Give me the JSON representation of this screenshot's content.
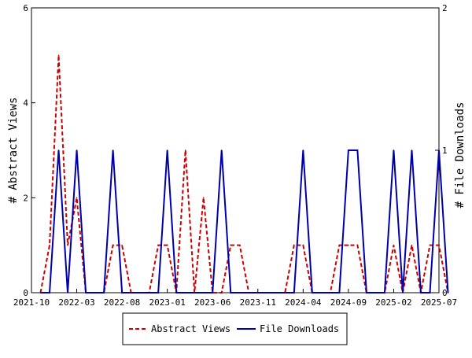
{
  "chart_data": {
    "type": "line",
    "x_axis": {
      "tick_labels": [
        "2021-10",
        "2022-03",
        "2022-08",
        "2023-01",
        "2023-06",
        "2023-11",
        "2024-04",
        "2024-09",
        "2025-02",
        "2025-07"
      ],
      "range": [
        "2021-10",
        "2025-07"
      ]
    },
    "y_left": {
      "label": "# Abstract Views",
      "range": [
        0,
        6
      ],
      "tick_labels": [
        "0",
        "2",
        "4",
        "6"
      ]
    },
    "y_right": {
      "label": "# File Downloads",
      "range": [
        0,
        2
      ],
      "tick_labels": [
        "0",
        "1",
        "2"
      ]
    },
    "grid": false,
    "legend_position": "bottom-center",
    "series": [
      {
        "name": "Abstract Views",
        "axis": "left",
        "color": "#cc0000",
        "style": "dashed",
        "points": [
          [
            "2021-11",
            0
          ],
          [
            "2021-12",
            1
          ],
          [
            "2022-01",
            5
          ],
          [
            "2022-02",
            1
          ],
          [
            "2022-03",
            2
          ],
          [
            "2022-04",
            0
          ],
          [
            "2022-05",
            0
          ],
          [
            "2022-06",
            0
          ],
          [
            "2022-07",
            1
          ],
          [
            "2022-08",
            1
          ],
          [
            "2022-09",
            0
          ],
          [
            "2022-10",
            0
          ],
          [
            "2022-11",
            0
          ],
          [
            "2022-12",
            1
          ],
          [
            "2023-01",
            1
          ],
          [
            "2023-02",
            0
          ],
          [
            "2023-03",
            3
          ],
          [
            "2023-04",
            0
          ],
          [
            "2023-05",
            2
          ],
          [
            "2023-06",
            0
          ],
          [
            "2023-07",
            0
          ],
          [
            "2023-08",
            1
          ],
          [
            "2023-09",
            1
          ],
          [
            "2023-10",
            0
          ],
          [
            "2023-11",
            0
          ],
          [
            "2023-12",
            0
          ],
          [
            "2024-01",
            0
          ],
          [
            "2024-02",
            0
          ],
          [
            "2024-03",
            1
          ],
          [
            "2024-04",
            1
          ],
          [
            "2024-05",
            0
          ],
          [
            "2024-06",
            0
          ],
          [
            "2024-07",
            0
          ],
          [
            "2024-08",
            1
          ],
          [
            "2024-09",
            1
          ],
          [
            "2024-10",
            1
          ],
          [
            "2024-11",
            0
          ],
          [
            "2024-12",
            0
          ],
          [
            "2025-01",
            0
          ],
          [
            "2025-02",
            1
          ],
          [
            "2025-03",
            0
          ],
          [
            "2025-04",
            1
          ],
          [
            "2025-05",
            0
          ],
          [
            "2025-06",
            1
          ],
          [
            "2025-07",
            1
          ],
          [
            "2025-08",
            0
          ]
        ]
      },
      {
        "name": "File Downloads",
        "axis": "right",
        "color": "#0000aa",
        "style": "solid",
        "points": [
          [
            "2021-11",
            0
          ],
          [
            "2021-12",
            0
          ],
          [
            "2022-01",
            1
          ],
          [
            "2022-02",
            0
          ],
          [
            "2022-03",
            1
          ],
          [
            "2022-04",
            0
          ],
          [
            "2022-05",
            0
          ],
          [
            "2022-06",
            0
          ],
          [
            "2022-07",
            1
          ],
          [
            "2022-08",
            0
          ],
          [
            "2022-09",
            0
          ],
          [
            "2022-10",
            0
          ],
          [
            "2022-11",
            0
          ],
          [
            "2022-12",
            0
          ],
          [
            "2023-01",
            1
          ],
          [
            "2023-02",
            0
          ],
          [
            "2023-03",
            0
          ],
          [
            "2023-04",
            0
          ],
          [
            "2023-05",
            0
          ],
          [
            "2023-06",
            0
          ],
          [
            "2023-07",
            1
          ],
          [
            "2023-08",
            0
          ],
          [
            "2023-09",
            0
          ],
          [
            "2023-10",
            0
          ],
          [
            "2023-11",
            0
          ],
          [
            "2023-12",
            0
          ],
          [
            "2024-01",
            0
          ],
          [
            "2024-02",
            0
          ],
          [
            "2024-03",
            0
          ],
          [
            "2024-04",
            1
          ],
          [
            "2024-05",
            0
          ],
          [
            "2024-06",
            0
          ],
          [
            "2024-07",
            0
          ],
          [
            "2024-08",
            0
          ],
          [
            "2024-09",
            1
          ],
          [
            "2024-10",
            1
          ],
          [
            "2024-11",
            0
          ],
          [
            "2024-12",
            0
          ],
          [
            "2025-01",
            0
          ],
          [
            "2025-02",
            1
          ],
          [
            "2025-03",
            0
          ],
          [
            "2025-04",
            1
          ],
          [
            "2025-05",
            0
          ],
          [
            "2025-06",
            0
          ],
          [
            "2025-07",
            1
          ],
          [
            "2025-08",
            0
          ]
        ]
      }
    ]
  }
}
